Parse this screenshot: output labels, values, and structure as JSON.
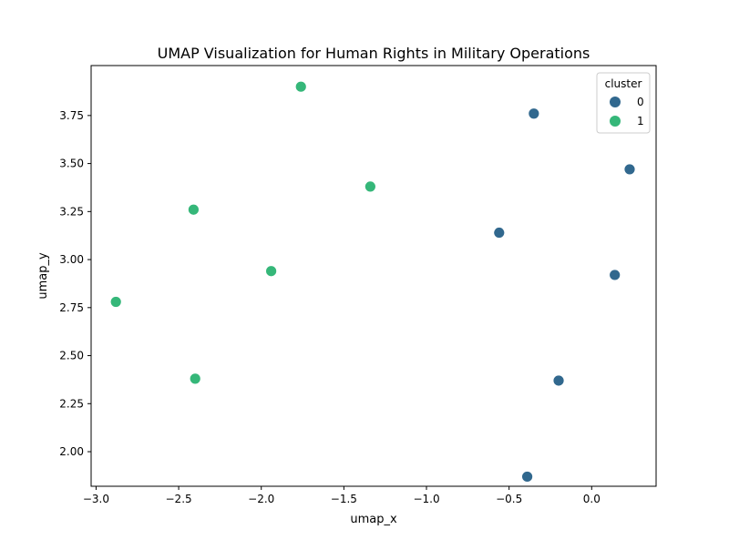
{
  "chart_data": {
    "type": "scatter",
    "title": "UMAP Visualization for Human Rights in Military Operations",
    "xlabel": "umap_x",
    "ylabel": "umap_y",
    "xlim": [
      -3.03,
      0.39
    ],
    "ylim": [
      1.82,
      4.01
    ],
    "xticks": [
      -3.0,
      -2.5,
      -2.0,
      -1.5,
      -1.0,
      -0.5,
      0.0
    ],
    "xtick_labels": [
      "−3.0",
      "−2.5",
      "−2.0",
      "−1.5",
      "−1.0",
      "−0.5",
      "0.0"
    ],
    "yticks": [
      2.0,
      2.25,
      2.5,
      2.75,
      3.0,
      3.25,
      3.5,
      3.75
    ],
    "ytick_labels": [
      "2.00",
      "2.25",
      "2.50",
      "2.75",
      "3.00",
      "3.25",
      "3.50",
      "3.75"
    ],
    "grid": false,
    "legend": {
      "title": "cluster",
      "placement": "top-right"
    },
    "series": [
      {
        "name": "0",
        "color": "#31688e",
        "points": [
          {
            "x": -0.35,
            "y": 3.76
          },
          {
            "x": 0.23,
            "y": 3.47
          },
          {
            "x": -0.56,
            "y": 3.14
          },
          {
            "x": 0.14,
            "y": 2.92
          },
          {
            "x": -0.2,
            "y": 2.37
          },
          {
            "x": -0.39,
            "y": 1.87
          }
        ]
      },
      {
        "name": "1",
        "color": "#35b779",
        "points": [
          {
            "x": -1.76,
            "y": 3.9
          },
          {
            "x": -1.34,
            "y": 3.38
          },
          {
            "x": -2.41,
            "y": 3.26
          },
          {
            "x": -1.94,
            "y": 2.94
          },
          {
            "x": -2.88,
            "y": 2.78
          },
          {
            "x": -2.4,
            "y": 2.38
          }
        ]
      }
    ]
  }
}
